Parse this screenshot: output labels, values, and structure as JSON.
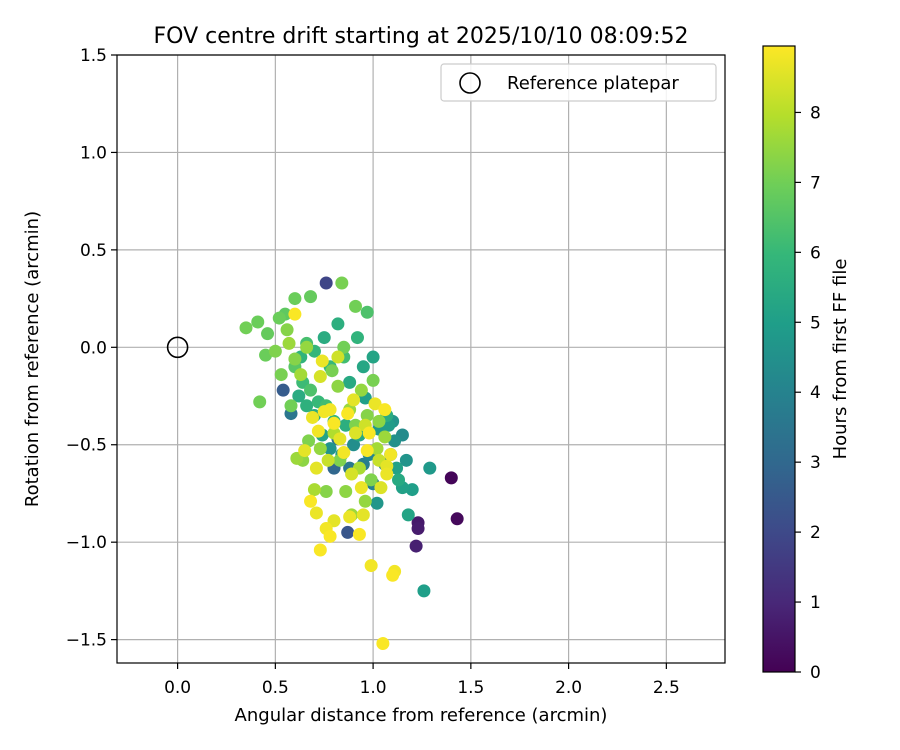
{
  "chart_data": {
    "type": "scatter",
    "title": "FOV centre drift starting at 2025/10/10 08:09:52",
    "xlabel": "Angular distance from reference (arcmin)",
    "ylabel": "Rotation from reference (arcmin)",
    "xlim": [
      -0.31,
      2.8
    ],
    "ylim": [
      -1.62,
      1.5
    ],
    "x_ticks": [
      0.0,
      0.5,
      1.0,
      1.5,
      2.0,
      2.5
    ],
    "x_tick_labels": [
      "0.0",
      "0.5",
      "1.0",
      "1.5",
      "2.0",
      "2.5"
    ],
    "y_ticks": [
      1.5,
      1.0,
      0.5,
      0.0,
      -0.5,
      -1.0,
      -1.5
    ],
    "y_tick_labels": [
      "1.5",
      "1.0",
      "0.5",
      "0.0",
      "−0.5",
      "−1.0",
      "−1.5"
    ],
    "grid": true,
    "legend": {
      "placement": "top-right",
      "entries": [
        "Reference platepar"
      ]
    },
    "reference_point": {
      "x": 0.0,
      "y": 0.0,
      "label": "Reference platepar"
    },
    "colorbar": {
      "label": "Hours from first FF file",
      "range": [
        0,
        8.95
      ],
      "ticks": [
        0,
        1,
        2,
        3,
        4,
        5,
        6,
        7,
        8
      ],
      "tick_labels": [
        "0",
        "1",
        "2",
        "3",
        "4",
        "5",
        "6",
        "7",
        "8"
      ],
      "colormap": "viridis"
    },
    "points": [
      {
        "x": 1.4,
        "y": -0.67,
        "h": 0.1
      },
      {
        "x": 1.43,
        "y": -0.88,
        "h": 0.2
      },
      {
        "x": 1.23,
        "y": -0.9,
        "h": 0.6
      },
      {
        "x": 1.23,
        "y": -0.93,
        "h": 0.7
      },
      {
        "x": 1.22,
        "y": -1.02,
        "h": 0.8
      },
      {
        "x": 0.76,
        "y": 0.33,
        "h": 1.9
      },
      {
        "x": 0.54,
        "y": -0.22,
        "h": 2.6
      },
      {
        "x": 0.87,
        "y": -0.95,
        "h": 2.4
      },
      {
        "x": 0.58,
        "y": -0.34,
        "h": 3.5
      },
      {
        "x": 0.8,
        "y": -0.62,
        "h": 3.0
      },
      {
        "x": 1.26,
        "y": -1.25,
        "h": 5.0
      },
      {
        "x": 1.29,
        "y": -0.62,
        "h": 4.8
      },
      {
        "x": 1.18,
        "y": -0.86,
        "h": 5.2
      },
      {
        "x": 1.2,
        "y": -0.73,
        "h": 5.0
      },
      {
        "x": 1.15,
        "y": -0.72,
        "h": 5.1
      },
      {
        "x": 1.17,
        "y": -0.58,
        "h": 4.6
      },
      {
        "x": 1.15,
        "y": -0.45,
        "h": 4.3
      },
      {
        "x": 1.11,
        "y": -0.48,
        "h": 4.5
      },
      {
        "x": 1.08,
        "y": -0.4,
        "h": 4.9
      },
      {
        "x": 1.06,
        "y": -0.6,
        "h": 4.0
      },
      {
        "x": 1.09,
        "y": -0.55,
        "h": 4.2
      },
      {
        "x": 1.02,
        "y": -0.8,
        "h": 4.7
      },
      {
        "x": 1.0,
        "y": -0.7,
        "h": 3.9
      },
      {
        "x": 0.98,
        "y": -0.55,
        "h": 4.1
      },
      {
        "x": 0.95,
        "y": -0.6,
        "h": 3.8
      },
      {
        "x": 0.93,
        "y": -0.45,
        "h": 5.3
      },
      {
        "x": 0.9,
        "y": -0.5,
        "h": 4.4
      },
      {
        "x": 0.88,
        "y": -0.62,
        "h": 3.6
      },
      {
        "x": 0.86,
        "y": -0.4,
        "h": 5.6
      },
      {
        "x": 0.84,
        "y": -0.55,
        "h": 4.8
      },
      {
        "x": 0.82,
        "y": -0.47,
        "h": 3.3
      },
      {
        "x": 0.8,
        "y": -0.38,
        "h": 5.9
      },
      {
        "x": 0.78,
        "y": -0.52,
        "h": 4.6
      },
      {
        "x": 0.76,
        "y": -0.3,
        "h": 6.2
      },
      {
        "x": 0.74,
        "y": -0.45,
        "h": 5.2
      },
      {
        "x": 0.72,
        "y": -0.28,
        "h": 6.0
      },
      {
        "x": 0.7,
        "y": -0.35,
        "h": 5.4
      },
      {
        "x": 0.68,
        "y": -0.22,
        "h": 6.4
      },
      {
        "x": 0.66,
        "y": -0.3,
        "h": 5.7
      },
      {
        "x": 0.64,
        "y": -0.18,
        "h": 6.1
      },
      {
        "x": 0.62,
        "y": -0.25,
        "h": 5.5
      },
      {
        "x": 0.6,
        "y": -0.1,
        "h": 6.6
      },
      {
        "x": 0.63,
        "y": -0.05,
        "h": 5.8
      },
      {
        "x": 0.66,
        "y": 0.02,
        "h": 6.3
      },
      {
        "x": 0.7,
        "y": -0.02,
        "h": 5.9
      },
      {
        "x": 0.75,
        "y": 0.05,
        "h": 5.5
      },
      {
        "x": 0.78,
        "y": -0.1,
        "h": 6.0
      },
      {
        "x": 0.82,
        "y": 0.12,
        "h": 5.6
      },
      {
        "x": 0.85,
        "y": -0.05,
        "h": 6.2
      },
      {
        "x": 0.88,
        "y": -0.18,
        "h": 5.4
      },
      {
        "x": 0.92,
        "y": 0.05,
        "h": 5.8
      },
      {
        "x": 0.95,
        "y": -0.1,
        "h": 5.3
      },
      {
        "x": 0.97,
        "y": 0.18,
        "h": 6.4
      },
      {
        "x": 1.0,
        "y": -0.05,
        "h": 5.2
      },
      {
        "x": 0.96,
        "y": -0.26,
        "h": 5.0
      },
      {
        "x": 1.03,
        "y": -0.42,
        "h": 4.8
      },
      {
        "x": 1.07,
        "y": -0.35,
        "h": 5.5
      },
      {
        "x": 1.1,
        "y": -0.38,
        "h": 4.6
      },
      {
        "x": 1.12,
        "y": -0.62,
        "h": 5.1
      },
      {
        "x": 1.13,
        "y": -0.68,
        "h": 5.4
      },
      {
        "x": 0.6,
        "y": 0.25,
        "h": 6.9
      },
      {
        "x": 0.68,
        "y": 0.26,
        "h": 6.8
      },
      {
        "x": 0.84,
        "y": 0.33,
        "h": 7.1
      },
      {
        "x": 0.91,
        "y": 0.21,
        "h": 7.0
      },
      {
        "x": 0.55,
        "y": 0.17,
        "h": 6.7
      },
      {
        "x": 0.52,
        "y": 0.15,
        "h": 6.9
      },
      {
        "x": 0.46,
        "y": 0.07,
        "h": 6.8
      },
      {
        "x": 0.41,
        "y": 0.13,
        "h": 6.9
      },
      {
        "x": 0.35,
        "y": 0.1,
        "h": 7.0
      },
      {
        "x": 0.42,
        "y": -0.28,
        "h": 7.0
      },
      {
        "x": 0.45,
        "y": -0.04,
        "h": 6.9
      },
      {
        "x": 0.5,
        "y": -0.02,
        "h": 7.2
      },
      {
        "x": 0.53,
        "y": -0.14,
        "h": 7.1
      },
      {
        "x": 0.56,
        "y": 0.09,
        "h": 7.3
      },
      {
        "x": 0.58,
        "y": -0.3,
        "h": 7.0
      },
      {
        "x": 0.61,
        "y": -0.57,
        "h": 7.6
      },
      {
        "x": 0.64,
        "y": -0.58,
        "h": 7.4
      },
      {
        "x": 0.67,
        "y": -0.48,
        "h": 7.2
      },
      {
        "x": 0.7,
        "y": -0.73,
        "h": 7.8
      },
      {
        "x": 0.73,
        "y": -0.52,
        "h": 7.5
      },
      {
        "x": 0.76,
        "y": -0.74,
        "h": 7.3
      },
      {
        "x": 0.79,
        "y": -0.12,
        "h": 7.1
      },
      {
        "x": 0.82,
        "y": -0.2,
        "h": 7.4
      },
      {
        "x": 0.85,
        "y": 0.0,
        "h": 7.0
      },
      {
        "x": 0.88,
        "y": -0.32,
        "h": 7.6
      },
      {
        "x": 0.91,
        "y": -0.4,
        "h": 7.2
      },
      {
        "x": 0.94,
        "y": -0.22,
        "h": 7.5
      },
      {
        "x": 0.97,
        "y": -0.35,
        "h": 7.3
      },
      {
        "x": 1.0,
        "y": -0.17,
        "h": 7.1
      },
      {
        "x": 1.03,
        "y": -0.38,
        "h": 7.4
      },
      {
        "x": 1.06,
        "y": -0.46,
        "h": 7.6
      },
      {
        "x": 1.02,
        "y": -0.52,
        "h": 7.7
      },
      {
        "x": 0.99,
        "y": -0.68,
        "h": 7.2
      },
      {
        "x": 0.96,
        "y": -0.79,
        "h": 7.5
      },
      {
        "x": 0.93,
        "y": -0.62,
        "h": 7.8
      },
      {
        "x": 0.89,
        "y": -0.86,
        "h": 7.6
      },
      {
        "x": 0.86,
        "y": -0.74,
        "h": 7.4
      },
      {
        "x": 0.83,
        "y": -0.58,
        "h": 7.2
      },
      {
        "x": 0.8,
        "y": -0.44,
        "h": 7.9
      },
      {
        "x": 0.66,
        "y": 0.0,
        "h": 7.5
      },
      {
        "x": 0.63,
        "y": -0.14,
        "h": 7.7
      },
      {
        "x": 0.6,
        "y": -0.06,
        "h": 7.3
      },
      {
        "x": 0.57,
        "y": 0.02,
        "h": 7.6
      },
      {
        "x": 0.71,
        "y": -0.62,
        "h": 8.6
      },
      {
        "x": 0.68,
        "y": -0.79,
        "h": 8.9
      },
      {
        "x": 0.71,
        "y": -0.85,
        "h": 8.7
      },
      {
        "x": 0.73,
        "y": -1.04,
        "h": 8.9
      },
      {
        "x": 0.76,
        "y": -0.93,
        "h": 8.8
      },
      {
        "x": 0.78,
        "y": -0.97,
        "h": 8.9
      },
      {
        "x": 0.8,
        "y": -0.89,
        "h": 8.6
      },
      {
        "x": 0.88,
        "y": -0.87,
        "h": 8.7
      },
      {
        "x": 0.93,
        "y": -0.96,
        "h": 8.9
      },
      {
        "x": 0.95,
        "y": -0.86,
        "h": 8.6
      },
      {
        "x": 0.99,
        "y": -1.12,
        "h": 8.8
      },
      {
        "x": 1.04,
        "y": -0.72,
        "h": 8.5
      },
      {
        "x": 1.07,
        "y": -0.65,
        "h": 8.7
      },
      {
        "x": 1.11,
        "y": -1.15,
        "h": 8.8
      },
      {
        "x": 1.1,
        "y": -1.17,
        "h": 8.9
      },
      {
        "x": 1.05,
        "y": -1.52,
        "h": 8.9
      },
      {
        "x": 0.6,
        "y": 0.17,
        "h": 8.9
      },
      {
        "x": 0.74,
        "y": -0.07,
        "h": 8.7
      },
      {
        "x": 0.78,
        "y": -0.32,
        "h": 8.8
      },
      {
        "x": 0.8,
        "y": -0.39,
        "h": 8.9
      },
      {
        "x": 0.75,
        "y": -0.33,
        "h": 8.8
      },
      {
        "x": 0.83,
        "y": -0.47,
        "h": 8.6
      },
      {
        "x": 0.85,
        "y": -0.54,
        "h": 8.8
      },
      {
        "x": 0.91,
        "y": -0.44,
        "h": 8.5
      },
      {
        "x": 0.98,
        "y": -0.44,
        "h": 8.9
      },
      {
        "x": 1.01,
        "y": -0.29,
        "h": 8.7
      },
      {
        "x": 1.06,
        "y": -0.32,
        "h": 8.9
      },
      {
        "x": 1.07,
        "y": -0.61,
        "h": 8.6
      },
      {
        "x": 1.09,
        "y": -0.55,
        "h": 8.8
      },
      {
        "x": 0.97,
        "y": -0.53,
        "h": 8.9
      },
      {
        "x": 0.69,
        "y": -0.36,
        "h": 8.7
      },
      {
        "x": 0.72,
        "y": -0.43,
        "h": 8.8
      },
      {
        "x": 0.87,
        "y": -0.34,
        "h": 8.9
      },
      {
        "x": 0.9,
        "y": -0.27,
        "h": 8.6
      },
      {
        "x": 0.65,
        "y": -0.53,
        "h": 8.6
      },
      {
        "x": 0.94,
        "y": -0.72,
        "h": 8.7
      },
      {
        "x": 0.73,
        "y": -0.15,
        "h": 8.4
      },
      {
        "x": 0.82,
        "y": -0.05,
        "h": 8.3
      },
      {
        "x": 0.77,
        "y": -0.58,
        "h": 8.2
      },
      {
        "x": 0.89,
        "y": -0.65,
        "h": 8.4
      },
      {
        "x": 1.03,
        "y": -0.58,
        "h": 8.2
      },
      {
        "x": 0.96,
        "y": -0.4,
        "h": 8.3
      }
    ]
  }
}
